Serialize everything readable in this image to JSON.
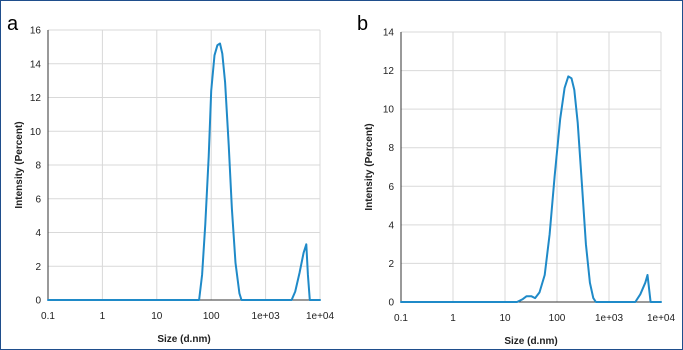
{
  "colors": {
    "line": "#1f8ac8",
    "grid": "#d9d9d9",
    "frame": "#1f4e8c"
  },
  "chart_data": [
    {
      "type": "line",
      "panel_label": "a",
      "xlabel": "Size (d.nm)",
      "ylabel": "Intensity (Percent)",
      "xscale": "log",
      "xlim": [
        0.1,
        10000
      ],
      "ylim": [
        0,
        16
      ],
      "x_ticks": [
        0.1,
        1,
        10,
        100,
        1000,
        10000
      ],
      "x_tick_labels": [
        "0.1",
        "1",
        "10",
        "100",
        "1e+03",
        "1e+04"
      ],
      "y_ticks": [
        0,
        2,
        4,
        6,
        8,
        10,
        12,
        14,
        16
      ],
      "y_tick_labels": [
        "0",
        "2",
        "4",
        "6",
        "8",
        "10",
        "12",
        "14",
        "16"
      ],
      "grid": true,
      "series": [
        {
          "x": [
            0.1,
            60,
            68,
            78,
            90,
            100,
            115,
            130,
            145,
            160,
            180,
            210,
            240,
            280,
            330,
            360,
            1500,
            3000,
            3500,
            4200,
            5000,
            5600,
            6000,
            6500,
            10000
          ],
          "y": [
            0,
            0,
            1.5,
            4.5,
            8.5,
            12.4,
            14.5,
            15.1,
            15.2,
            14.6,
            12.9,
            9.2,
            5.4,
            2.2,
            0.4,
            0,
            0,
            0,
            0.5,
            1.6,
            2.8,
            3.3,
            1.5,
            0,
            0
          ]
        }
      ]
    },
    {
      "type": "line",
      "panel_label": "b",
      "xlabel": "Size (d.nm)",
      "ylabel": "Intensity (Percent)",
      "xscale": "log",
      "xlim": [
        0.1,
        10000
      ],
      "ylim": [
        0,
        14
      ],
      "x_ticks": [
        0.1,
        1,
        10,
        100,
        1000,
        10000
      ],
      "x_tick_labels": [
        "0.1",
        "1",
        "10",
        "100",
        "1e+03",
        "1e+04"
      ],
      "y_ticks": [
        0,
        2,
        4,
        6,
        8,
        10,
        12,
        14
      ],
      "y_tick_labels": [
        "0",
        "2",
        "4",
        "6",
        "8",
        "10",
        "12",
        "14"
      ],
      "grid": true,
      "series": [
        {
          "x": [
            0.1,
            17,
            22,
            26,
            32,
            38,
            46,
            58,
            72,
            90,
            115,
            140,
            165,
            190,
            215,
            250,
            300,
            360,
            430,
            500,
            560,
            1000,
            3200,
            4000,
            5000,
            5500,
            6300,
            10000
          ],
          "y": [
            0,
            0,
            0.15,
            0.3,
            0.3,
            0.2,
            0.5,
            1.4,
            3.5,
            6.5,
            9.5,
            11.1,
            11.7,
            11.6,
            11.0,
            9.3,
            6.2,
            3.0,
            1.0,
            0.2,
            0,
            0,
            0,
            0.4,
            1.0,
            1.4,
            0,
            0
          ]
        }
      ]
    }
  ]
}
